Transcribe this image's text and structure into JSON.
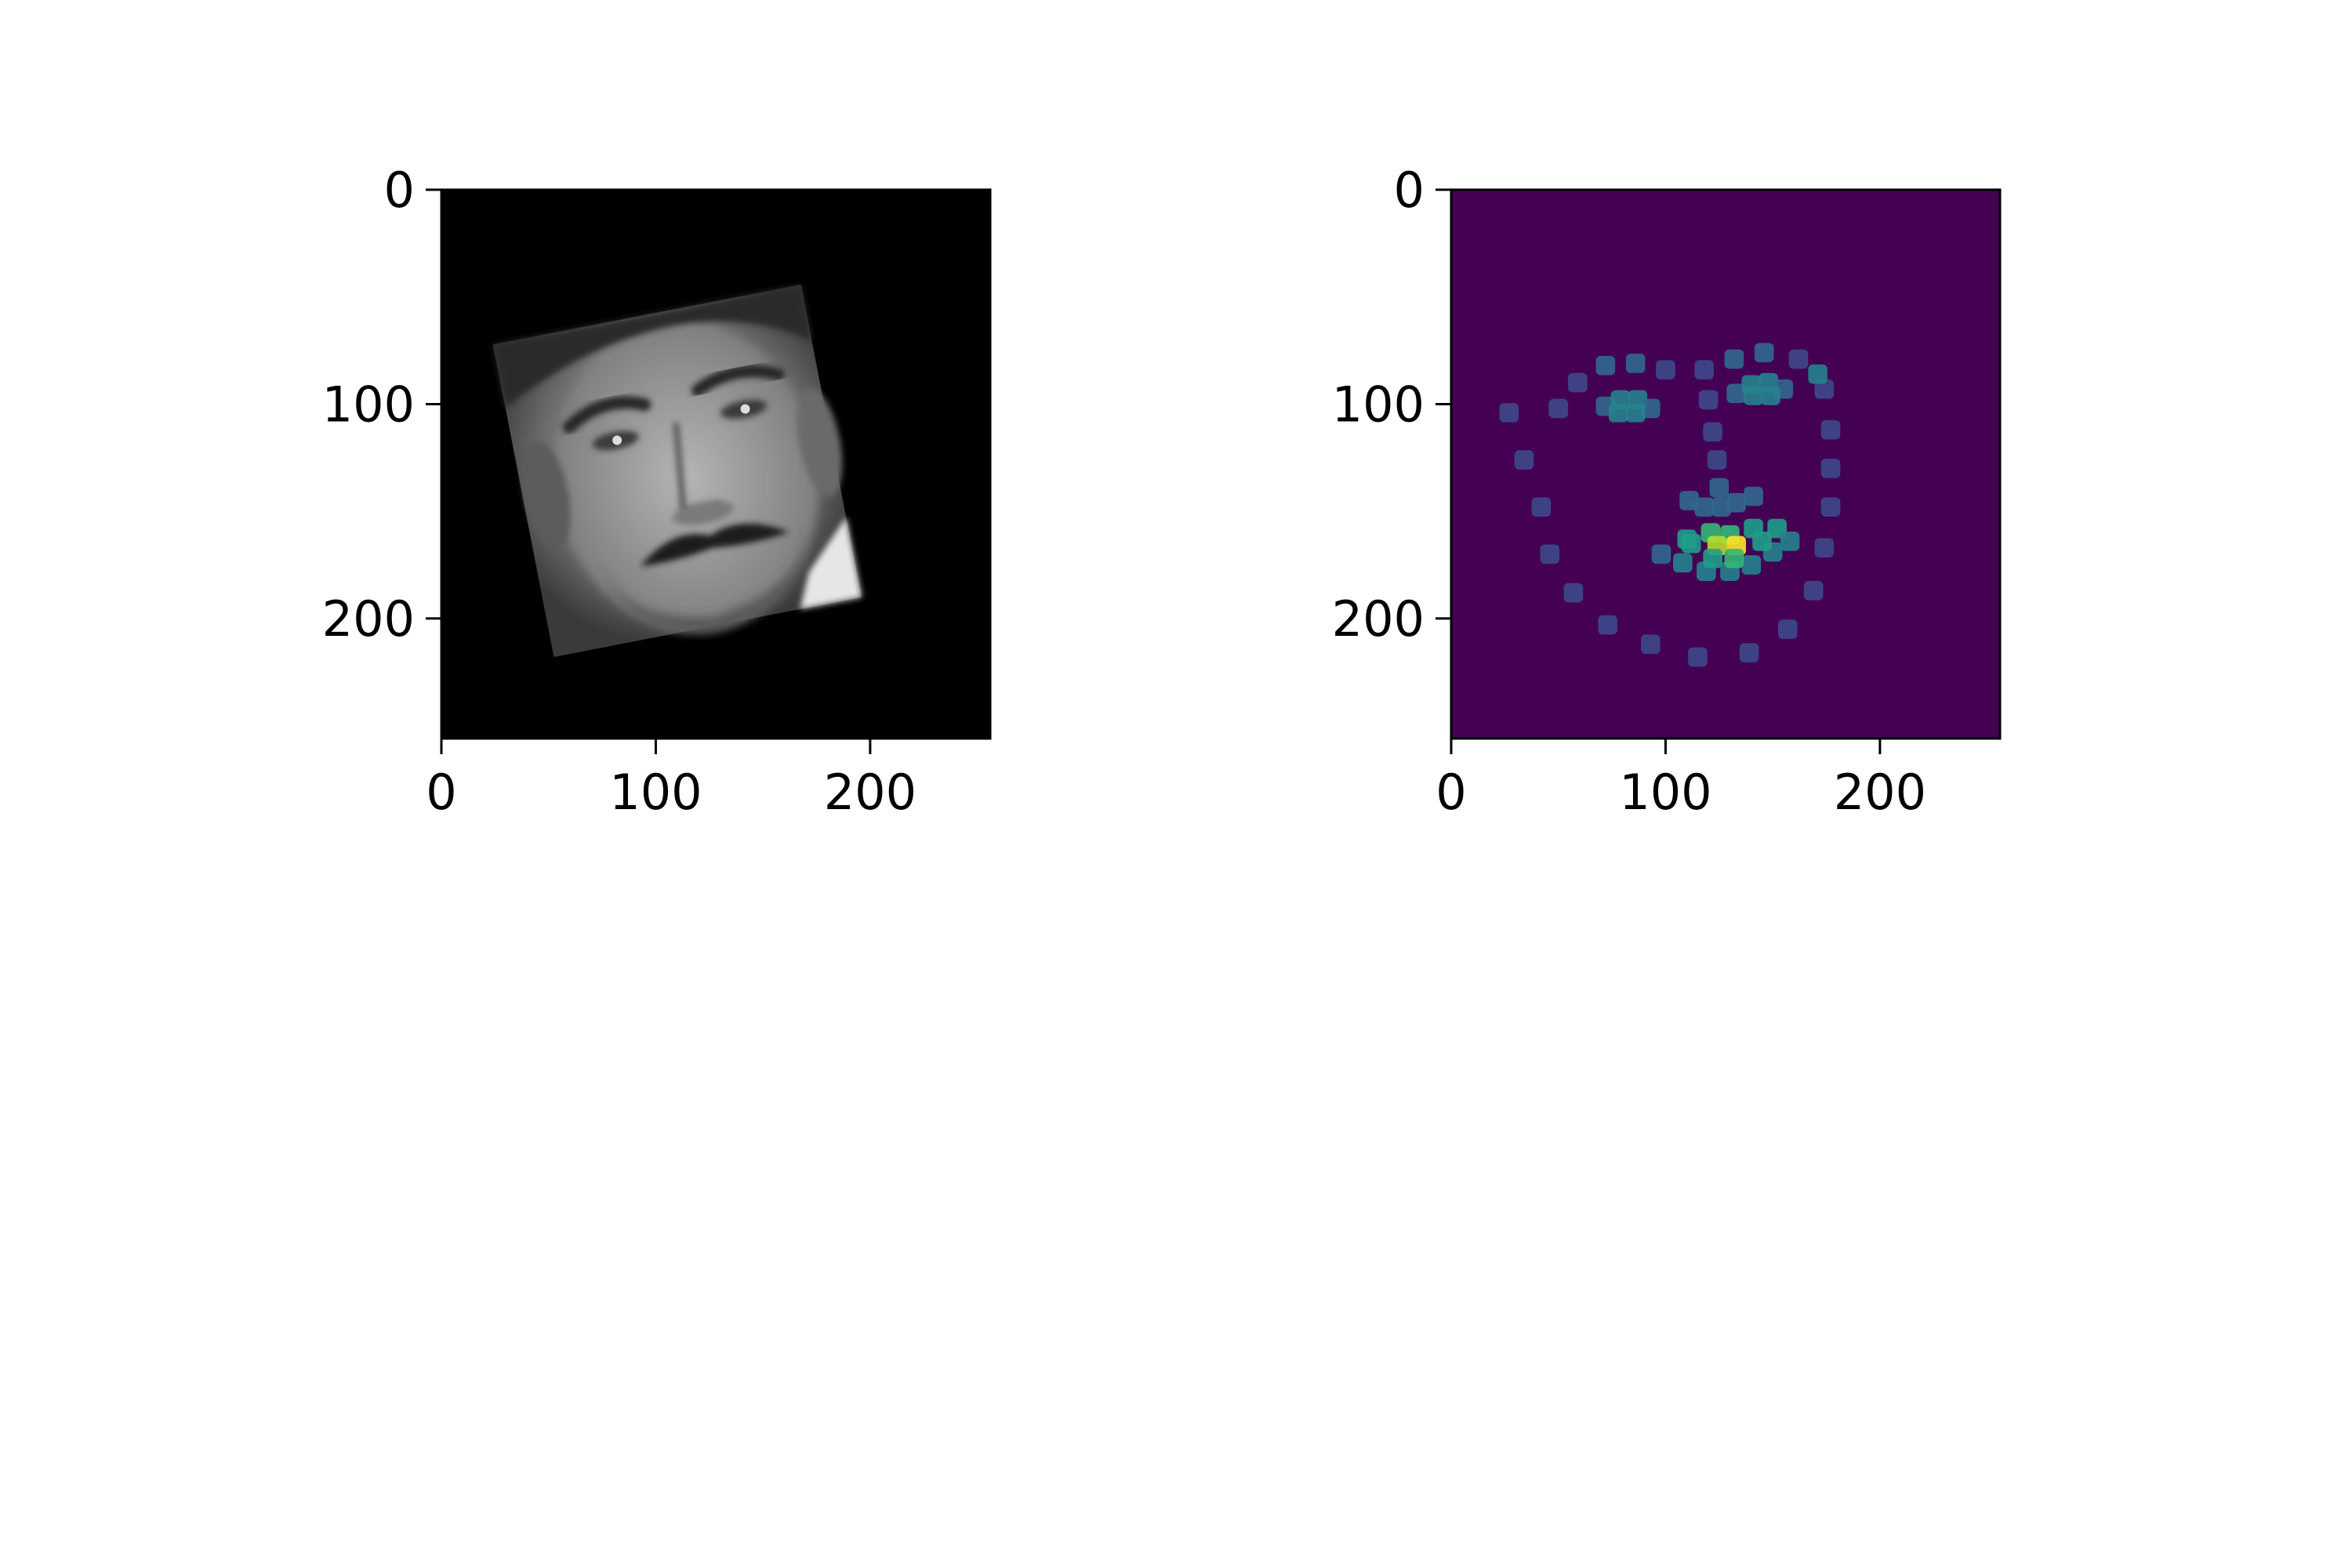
{
  "chart_data": [
    {
      "type": "heatmap",
      "image_content": "grayscale-face-photo",
      "background_color": "#000000",
      "xlim": [
        0,
        256
      ],
      "ylim": [
        256,
        0
      ],
      "xticks": [
        0,
        100,
        200
      ],
      "yticks": [
        0,
        100,
        200
      ],
      "xtick_labels": [
        "0",
        "100",
        "200"
      ],
      "ytick_labels": [
        "0",
        "100",
        "200"
      ]
    },
    {
      "type": "heatmap",
      "colormap": "viridis",
      "background_color": "#440154",
      "xlim": [
        0,
        256
      ],
      "ylim": [
        256,
        0
      ],
      "xticks": [
        0,
        100,
        200
      ],
      "yticks": [
        0,
        100,
        200
      ],
      "xtick_labels": [
        "0",
        "100",
        "200"
      ],
      "ytick_labels": [
        "0",
        "100",
        "200"
      ],
      "landmarks": [
        {
          "x": 27,
          "y": 104,
          "v": 0.25
        },
        {
          "x": 34,
          "y": 126,
          "v": 0.25
        },
        {
          "x": 42,
          "y": 148,
          "v": 0.25
        },
        {
          "x": 46,
          "y": 170,
          "v": 0.25
        },
        {
          "x": 57,
          "y": 188,
          "v": 0.25
        },
        {
          "x": 73,
          "y": 203,
          "v": 0.25
        },
        {
          "x": 93,
          "y": 212,
          "v": 0.25
        },
        {
          "x": 115,
          "y": 218,
          "v": 0.25
        },
        {
          "x": 139,
          "y": 216,
          "v": 0.25
        },
        {
          "x": 157,
          "y": 205,
          "v": 0.25
        },
        {
          "x": 169,
          "y": 187,
          "v": 0.25
        },
        {
          "x": 174,
          "y": 167,
          "v": 0.25
        },
        {
          "x": 177,
          "y": 148,
          "v": 0.25
        },
        {
          "x": 177,
          "y": 130,
          "v": 0.25
        },
        {
          "x": 177,
          "y": 112,
          "v": 0.25
        },
        {
          "x": 174,
          "y": 93,
          "v": 0.25
        },
        {
          "x": 50,
          "y": 102,
          "v": 0.25
        },
        {
          "x": 59,
          "y": 90,
          "v": 0.25
        },
        {
          "x": 72,
          "y": 82,
          "v": 0.3
        },
        {
          "x": 86,
          "y": 81,
          "v": 0.3
        },
        {
          "x": 100,
          "y": 84,
          "v": 0.25
        },
        {
          "x": 118,
          "y": 84,
          "v": 0.25
        },
        {
          "x": 132,
          "y": 79,
          "v": 0.3
        },
        {
          "x": 146,
          "y": 76,
          "v": 0.3
        },
        {
          "x": 162,
          "y": 79,
          "v": 0.25
        },
        {
          "x": 171,
          "y": 86,
          "v": 0.45
        },
        {
          "x": 120,
          "y": 98,
          "v": 0.25
        },
        {
          "x": 122,
          "y": 113,
          "v": 0.25
        },
        {
          "x": 124,
          "y": 126,
          "v": 0.25
        },
        {
          "x": 125,
          "y": 139,
          "v": 0.35
        },
        {
          "x": 111,
          "y": 145,
          "v": 0.35
        },
        {
          "x": 118,
          "y": 148,
          "v": 0.35
        },
        {
          "x": 126,
          "y": 148,
          "v": 0.35
        },
        {
          "x": 133,
          "y": 146,
          "v": 0.35
        },
        {
          "x": 141,
          "y": 143,
          "v": 0.35
        },
        {
          "x": 72,
          "y": 101,
          "v": 0.35
        },
        {
          "x": 79,
          "y": 98,
          "v": 0.45
        },
        {
          "x": 87,
          "y": 98,
          "v": 0.45
        },
        {
          "x": 93,
          "y": 102,
          "v": 0.35
        },
        {
          "x": 86,
          "y": 104,
          "v": 0.45
        },
        {
          "x": 78,
          "y": 104,
          "v": 0.45
        },
        {
          "x": 133,
          "y": 95,
          "v": 0.35
        },
        {
          "x": 140,
          "y": 91,
          "v": 0.45
        },
        {
          "x": 148,
          "y": 90,
          "v": 0.45
        },
        {
          "x": 155,
          "y": 93,
          "v": 0.35
        },
        {
          "x": 149,
          "y": 96,
          "v": 0.45
        },
        {
          "x": 141,
          "y": 96,
          "v": 0.45
        },
        {
          "x": 98,
          "y": 170,
          "v": 0.35
        },
        {
          "x": 110,
          "y": 163,
          "v": 0.55
        },
        {
          "x": 121,
          "y": 160,
          "v": 0.65
        },
        {
          "x": 130,
          "y": 161,
          "v": 0.7
        },
        {
          "x": 141,
          "y": 158,
          "v": 0.6
        },
        {
          "x": 152,
          "y": 158,
          "v": 0.5
        },
        {
          "x": 158,
          "y": 164,
          "v": 0.4
        },
        {
          "x": 150,
          "y": 169,
          "v": 0.45
        },
        {
          "x": 140,
          "y": 175,
          "v": 0.45
        },
        {
          "x": 130,
          "y": 178,
          "v": 0.45
        },
        {
          "x": 119,
          "y": 178,
          "v": 0.4
        },
        {
          "x": 108,
          "y": 174,
          "v": 0.4
        },
        {
          "x": 112,
          "y": 165,
          "v": 0.6
        },
        {
          "x": 124,
          "y": 166,
          "v": 0.9
        },
        {
          "x": 133,
          "y": 166,
          "v": 1.0
        },
        {
          "x": 145,
          "y": 164,
          "v": 0.6
        },
        {
          "x": 132,
          "y": 172,
          "v": 0.7
        },
        {
          "x": 122,
          "y": 172,
          "v": 0.6
        }
      ]
    }
  ]
}
